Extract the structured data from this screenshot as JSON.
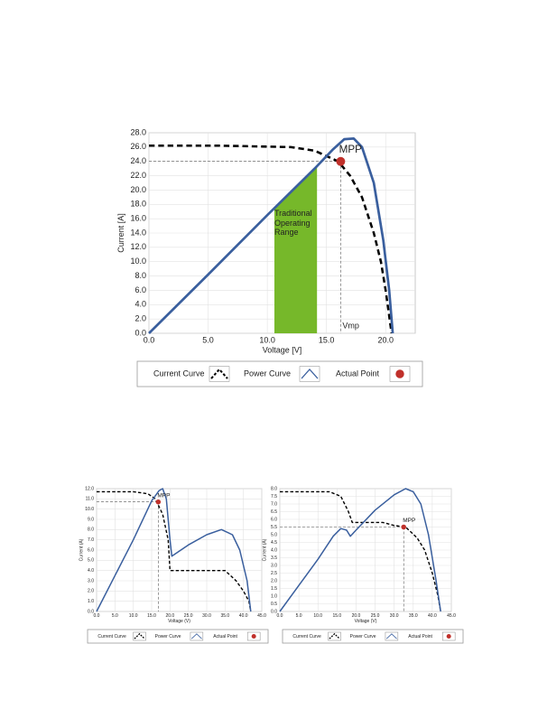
{
  "chart_data": [
    {
      "type": "line",
      "x_label": "Voltage [V]",
      "y_label": "Current [A]",
      "xlim": [
        0,
        22.5
      ],
      "ylim": [
        0,
        28
      ],
      "grid": true,
      "xticks": [
        {
          "value": 0,
          "label": "0.0"
        },
        {
          "value": 5,
          "label": "5.0"
        },
        {
          "value": 10,
          "label": "10.0"
        },
        {
          "value": 15,
          "label": "15.0"
        },
        {
          "value": 20,
          "label": "20.0"
        }
      ],
      "yticks": [
        {
          "value": 0,
          "label": "0.0"
        },
        {
          "value": 2,
          "label": "2.0"
        },
        {
          "value": 4,
          "label": "4.0"
        },
        {
          "value": 6,
          "label": "6.0"
        },
        {
          "value": 8,
          "label": "8.0"
        },
        {
          "value": 10,
          "label": "10.0"
        },
        {
          "value": 12,
          "label": "12.0"
        },
        {
          "value": 14,
          "label": "14.0"
        },
        {
          "value": 16,
          "label": "16.0"
        },
        {
          "value": 18,
          "label": "18.0"
        },
        {
          "value": 20,
          "label": "20.0"
        },
        {
          "value": 22,
          "label": "22.0"
        },
        {
          "value": 24,
          "label": "24.0"
        },
        {
          "value": 26,
          "label": "26.0"
        },
        {
          "value": 28,
          "label": "28.0"
        }
      ],
      "highlight": {
        "x": [
          10.6,
          14.2
        ],
        "color": "#76b82a"
      },
      "annotations": [
        "MPP",
        "Vmp",
        "Traditional Operating Range"
      ],
      "series": [
        {
          "name": "Current Curve",
          "color": "#000000",
          "dashed": true,
          "x": [
            0,
            6,
            12,
            14,
            16,
            17,
            18,
            19,
            19.6,
            20,
            20.5
          ],
          "values": [
            26.2,
            26.2,
            26,
            25.5,
            24,
            22,
            19,
            14,
            10,
            6,
            0
          ]
        },
        {
          "name": "Power Curve",
          "color": "#3a5f9e",
          "dashed": false,
          "x": [
            0,
            5,
            10,
            14,
            15.5,
            16.5,
            17.3,
            18,
            19,
            19.8,
            20.3,
            20.6
          ],
          "values": [
            0,
            8.2,
            16.5,
            23,
            25.6,
            27.1,
            27.2,
            26,
            21,
            13,
            6,
            0
          ]
        },
        {
          "name": "Actual Point",
          "color": "#c0302a",
          "marker": true,
          "x": [
            16.2
          ],
          "values": [
            24
          ]
        }
      ]
    },
    {
      "type": "line",
      "x_label": "Voltage (V)",
      "y_label": "Current (A)",
      "xlim": [
        0,
        45
      ],
      "ylim": [
        0,
        12
      ],
      "grid": true,
      "xticks": [
        {
          "value": 0,
          "label": "0.0"
        },
        {
          "value": 5,
          "label": "5.0"
        },
        {
          "value": 10,
          "label": "10.0"
        },
        {
          "value": 15,
          "label": "15.0"
        },
        {
          "value": 20,
          "label": "20.0"
        },
        {
          "value": 25,
          "label": "25.0"
        },
        {
          "value": 30,
          "label": "30.0"
        },
        {
          "value": 35,
          "label": "35.0"
        },
        {
          "value": 40,
          "label": "40.0"
        },
        {
          "value": 45,
          "label": "45.0"
        }
      ],
      "yticks": [
        {
          "value": 0,
          "label": "0.0"
        },
        {
          "value": 1,
          "label": "1.0"
        },
        {
          "value": 2,
          "label": "2.0"
        },
        {
          "value": 3,
          "label": "3.0"
        },
        {
          "value": 4,
          "label": "4.0"
        },
        {
          "value": 5,
          "label": "5.0"
        },
        {
          "value": 6,
          "label": "6.0"
        },
        {
          "value": 7,
          "label": "7.0"
        },
        {
          "value": 8,
          "label": "8.0"
        },
        {
          "value": 9,
          "label": "9.0"
        },
        {
          "value": 10,
          "label": "10.0"
        },
        {
          "value": 11,
          "label": "11.0"
        },
        {
          "value": 12,
          "label": "12.0"
        }
      ],
      "annotations": [
        "MPP"
      ],
      "series": [
        {
          "name": "Current Curve",
          "color": "#000000",
          "dashed": true,
          "x": [
            0,
            10,
            14,
            16,
            18,
            19.5,
            20,
            35,
            38,
            40,
            41.5,
            42
          ],
          "values": [
            11.7,
            11.7,
            11.5,
            11,
            9.5,
            7,
            4,
            4,
            3,
            2,
            1,
            0
          ]
        },
        {
          "name": "Power Curve",
          "color": "#3a5f9e",
          "dashed": false,
          "x": [
            0,
            5,
            10,
            15,
            17,
            18,
            19,
            20,
            20.5,
            25,
            30,
            34,
            37,
            39,
            41,
            42
          ],
          "values": [
            0,
            3.5,
            7,
            10.8,
            11.8,
            12,
            11,
            7,
            5.4,
            6.5,
            7.5,
            8,
            7.5,
            6,
            3,
            0
          ]
        },
        {
          "name": "Actual Point",
          "color": "#c0302a",
          "marker": true,
          "x": [
            16.8
          ],
          "values": [
            10.7
          ]
        }
      ]
    },
    {
      "type": "line",
      "x_label": "Voltage (V)",
      "y_label": "Current (A)",
      "xlim": [
        0,
        45
      ],
      "ylim": [
        0,
        8
      ],
      "grid": true,
      "xticks": [
        {
          "value": 0,
          "label": "0.0"
        },
        {
          "value": 5,
          "label": "5.0"
        },
        {
          "value": 10,
          "label": "10.0"
        },
        {
          "value": 15,
          "label": "15.0"
        },
        {
          "value": 20,
          "label": "20.0"
        },
        {
          "value": 25,
          "label": "25.0"
        },
        {
          "value": 30,
          "label": "30.0"
        },
        {
          "value": 35,
          "label": "35.0"
        },
        {
          "value": 40,
          "label": "40.0"
        },
        {
          "value": 45,
          "label": "45.0"
        }
      ],
      "yticks": [
        {
          "value": 0,
          "label": "0.0"
        },
        0.5,
        {
          "value": 1,
          "label": "1.0"
        },
        1.5,
        {
          "value": 2,
          "label": "2.0"
        },
        2.5,
        {
          "value": 3,
          "label": "3.0"
        },
        3.5,
        {
          "value": 4,
          "label": "4.0"
        },
        4.5,
        {
          "value": 5,
          "label": "5.0"
        },
        5.5,
        {
          "value": 6,
          "label": "6.0"
        },
        6.5,
        {
          "value": 7,
          "label": "7.0"
        },
        7.5,
        {
          "value": 8,
          "label": "8.0"
        }
      ],
      "annotations": [
        "MPP"
      ],
      "series": [
        {
          "name": "Current Curve",
          "color": "#000000",
          "dashed": true,
          "x": [
            0,
            13,
            16,
            18,
            19,
            22,
            27,
            30,
            33,
            36,
            38,
            40,
            41.5,
            42.2
          ],
          "values": [
            7.8,
            7.8,
            7.5,
            6.5,
            5.8,
            5.8,
            5.8,
            5.6,
            5.5,
            4.8,
            4,
            2.5,
            1,
            0
          ]
        },
        {
          "name": "Power Curve",
          "color": "#3a5f9e",
          "dashed": false,
          "x": [
            0,
            5,
            10,
            14,
            16,
            17.5,
            18.5,
            20,
            25,
            30,
            33,
            35,
            37,
            39,
            41,
            42.2
          ],
          "values": [
            0,
            1.7,
            3.4,
            4.9,
            5.4,
            5.3,
            4.9,
            5.3,
            6.6,
            7.6,
            8,
            7.8,
            7,
            5,
            2,
            0
          ]
        },
        {
          "name": "Actual Point",
          "color": "#c0302a",
          "marker": true,
          "x": [
            32.5
          ],
          "values": [
            5.5
          ]
        }
      ]
    }
  ]
}
